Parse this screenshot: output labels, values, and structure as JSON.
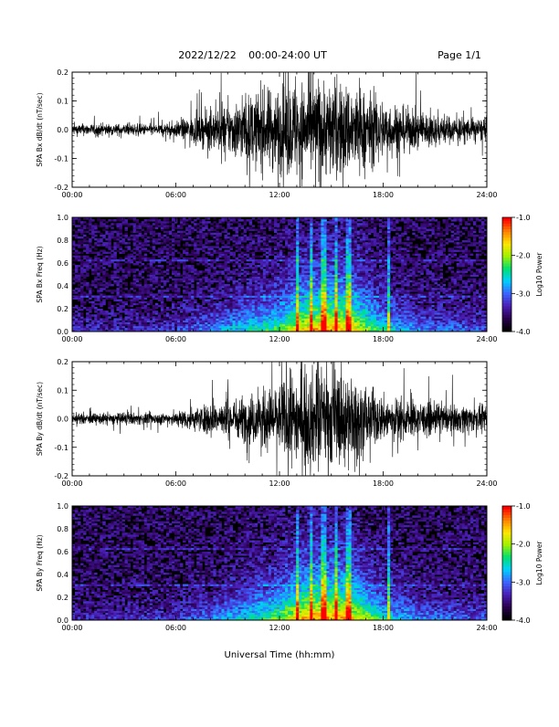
{
  "header": {
    "date": "2022/12/22",
    "time_range": "00:00-24:00 UT",
    "page": "Page 1/1"
  },
  "xlabel": "Universal Time (hh:mm)",
  "colors": {
    "trace": "#000000",
    "background": "#ffffff",
    "spectrogram_background": "#000000",
    "colormap": [
      "#000000",
      "#2a0050",
      "#4a1fb8",
      "#3a66ff",
      "#00cfff",
      "#00e070",
      "#a0f000",
      "#ffe600",
      "#ff8000",
      "#ff0000"
    ]
  },
  "chart_data": [
    {
      "id": "bx-trace",
      "type": "line",
      "ylabel": "SPA Bx dB/dt (nT/sec)",
      "xlim": [
        0,
        24
      ],
      "ylim": [
        -0.2,
        0.2
      ],
      "x_tick_labels": [
        "00:00",
        "06:00",
        "12:00",
        "18:00",
        "24:00"
      ],
      "x_tick_values": [
        0,
        6,
        12,
        18,
        24
      ],
      "y_tick_labels": [
        "-0.2",
        "-0.1",
        "0.0",
        "0.1",
        "0.2"
      ],
      "y_tick_values": [
        -0.2,
        -0.1,
        0.0,
        0.1,
        0.2
      ],
      "envelope": {
        "x_hours": [
          0,
          2,
          4,
          5,
          6,
          7,
          8,
          9,
          10,
          11,
          12,
          13,
          14,
          15,
          16,
          17,
          18,
          19,
          20,
          21,
          22,
          23,
          24
        ],
        "amplitude": [
          0.03,
          0.03,
          0.03,
          0.03,
          0.04,
          0.07,
          0.1,
          0.13,
          0.17,
          0.2,
          0.22,
          0.25,
          0.25,
          0.25,
          0.24,
          0.2,
          0.16,
          0.12,
          0.1,
          0.08,
          0.07,
          0.06,
          0.06
        ]
      }
    },
    {
      "id": "bx-spectrogram",
      "type": "heatmap",
      "ylabel": "SPA Bx Freq (Hz)",
      "colorbar_label": "Log10 Power",
      "xlim": [
        0,
        24
      ],
      "ylim": [
        0.0,
        1.0
      ],
      "x_tick_labels": [
        "00:00",
        "06:00",
        "12:00",
        "18:00",
        "24:00"
      ],
      "x_tick_values": [
        0,
        6,
        12,
        18,
        24
      ],
      "y_tick_labels": [
        "0.0",
        "0.2",
        "0.4",
        "0.6",
        "0.8",
        "1.0"
      ],
      "y_tick_values": [
        0.0,
        0.2,
        0.4,
        0.6,
        0.8,
        1.0
      ],
      "color_range": [
        -4.0,
        -1.0
      ],
      "colorbar_tick_labels": [
        "-1.0",
        "-2.0",
        "-3.0",
        "-4.0"
      ],
      "colorbar_tick_values": [
        -1.0,
        -2.0,
        -3.0,
        -4.0
      ],
      "activity_hours": [
        0,
        3,
        6,
        8,
        10,
        11,
        12,
        13,
        14,
        15,
        16,
        17,
        18,
        20,
        22,
        24
      ],
      "activity_level": [
        0.15,
        0.15,
        0.2,
        0.35,
        0.5,
        0.6,
        0.65,
        0.85,
        0.95,
        1.0,
        0.95,
        0.75,
        0.55,
        0.35,
        0.3,
        0.25
      ],
      "vertical_lines_hours": [
        13.0,
        13.8,
        14.6,
        15.3,
        16.0,
        18.3
      ]
    },
    {
      "id": "by-trace",
      "type": "line",
      "ylabel": "SPA By dB/dt (nT/sec)",
      "xlim": [
        0,
        24
      ],
      "ylim": [
        -0.2,
        0.2
      ],
      "x_tick_labels": [
        "00:00",
        "06:00",
        "12:00",
        "18:00",
        "24:00"
      ],
      "x_tick_values": [
        0,
        6,
        12,
        18,
        24
      ],
      "y_tick_labels": [
        "-0.2",
        "-0.1",
        "0.0",
        "0.1",
        "0.2"
      ],
      "y_tick_values": [
        -0.2,
        -0.1,
        0.0,
        0.1,
        0.2
      ],
      "envelope": {
        "x_hours": [
          0,
          2,
          4,
          5,
          6,
          7,
          8,
          9,
          10,
          11,
          12,
          13,
          14,
          15,
          16,
          17,
          18,
          19,
          20,
          21,
          22,
          23,
          24
        ],
        "amplitude": [
          0.025,
          0.03,
          0.03,
          0.03,
          0.04,
          0.06,
          0.08,
          0.1,
          0.12,
          0.15,
          0.18,
          0.25,
          0.26,
          0.26,
          0.25,
          0.16,
          0.12,
          0.1,
          0.09,
          0.08,
          0.07,
          0.07,
          0.06
        ]
      }
    },
    {
      "id": "by-spectrogram",
      "type": "heatmap",
      "ylabel": "SPA By Freq (Hz)",
      "colorbar_label": "Log10 Power",
      "xlim": [
        0,
        24
      ],
      "ylim": [
        0.0,
        1.0
      ],
      "x_tick_labels": [
        "00:00",
        "06:00",
        "12:00",
        "18:00",
        "24:00"
      ],
      "x_tick_values": [
        0,
        6,
        12,
        18,
        24
      ],
      "y_tick_labels": [
        "0.0",
        "0.2",
        "0.4",
        "0.6",
        "0.8",
        "1.0"
      ],
      "y_tick_values": [
        0.0,
        0.2,
        0.4,
        0.6,
        0.8,
        1.0
      ],
      "color_range": [
        -4.0,
        -1.0
      ],
      "colorbar_tick_labels": [
        "-1.0",
        "-2.0",
        "-3.0",
        "-4.0"
      ],
      "colorbar_tick_values": [
        -1.0,
        -2.0,
        -3.0,
        -4.0
      ],
      "activity_hours": [
        0,
        3,
        6,
        8,
        10,
        11,
        12,
        13,
        14,
        15,
        16,
        17,
        18,
        20,
        22,
        24
      ],
      "activity_level": [
        0.15,
        0.15,
        0.2,
        0.35,
        0.5,
        0.6,
        0.7,
        0.9,
        1.0,
        1.0,
        0.95,
        0.75,
        0.55,
        0.35,
        0.3,
        0.25
      ],
      "vertical_lines_hours": [
        13.0,
        13.8,
        14.6,
        15.3,
        16.0,
        18.3
      ]
    }
  ]
}
